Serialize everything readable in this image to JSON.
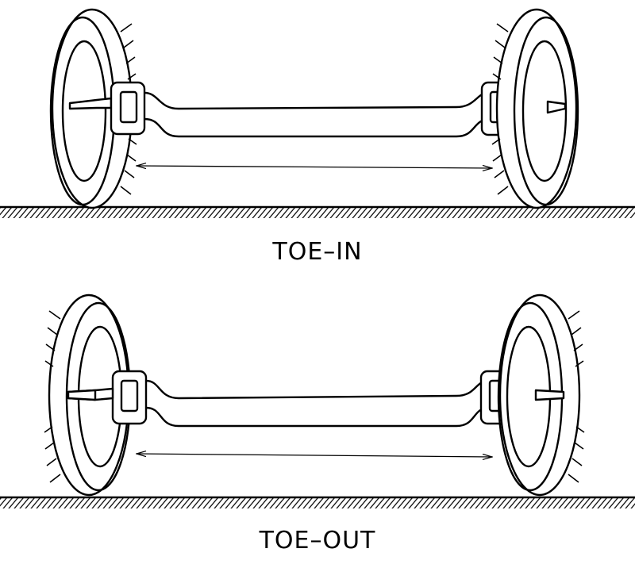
{
  "diagrams": [
    {
      "id": "toe-in",
      "label": "TOE–IN"
    },
    {
      "id": "toe-out",
      "label": "TOE–OUT"
    }
  ],
  "colors": {
    "line": "#000000",
    "background": "#ffffff"
  },
  "icons": [
    "tire-icon",
    "axle-icon",
    "ground-hatch-icon",
    "measurement-arrow-icon"
  ]
}
